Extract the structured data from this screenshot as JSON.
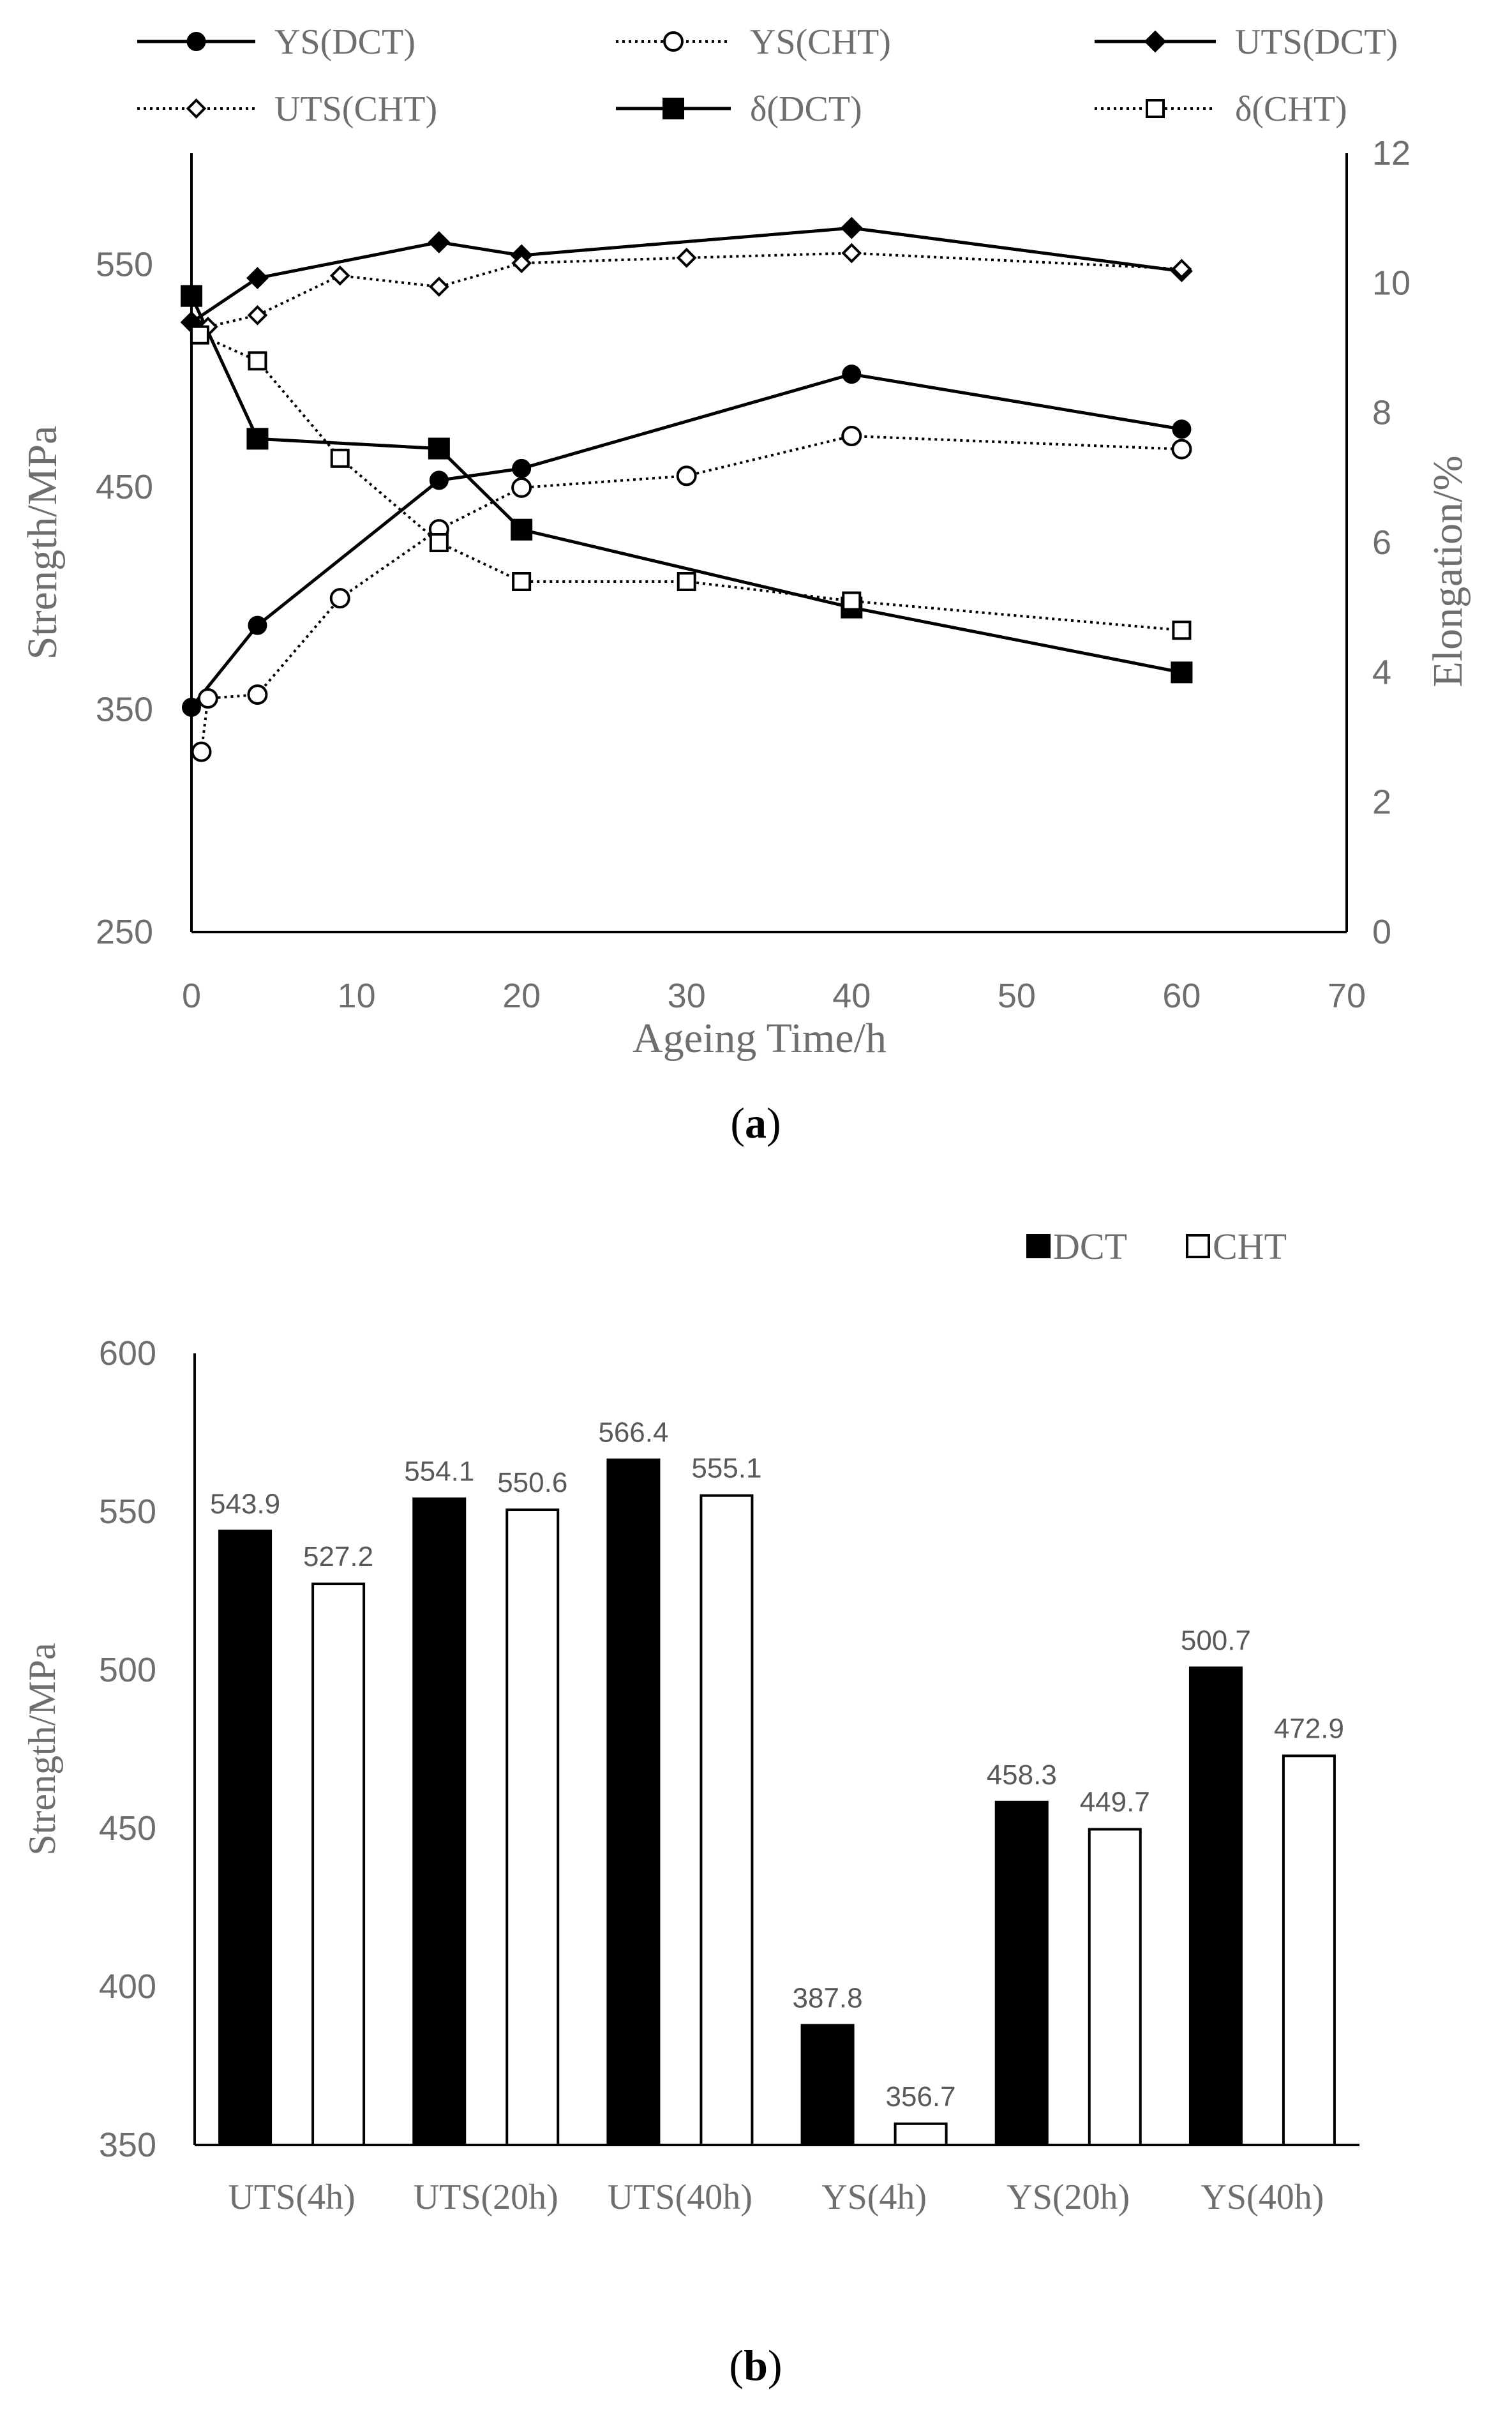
{
  "chart_data": [
    {
      "type": "line",
      "caption": "(a)",
      "xlabel": "Ageing Time/h",
      "ylabel": "Strength/MPa",
      "y2label": "Elongation/%",
      "xlim": [
        0,
        70
      ],
      "ylim": [
        250,
        600
      ],
      "y2lim": [
        0,
        12
      ],
      "x_ticks": [
        "0",
        "10",
        "20",
        "30",
        "40",
        "50",
        "60",
        "70"
      ],
      "y_ticks": [
        "250",
        "350",
        "450",
        "550"
      ],
      "y2_ticks": [
        "0",
        "2",
        "4",
        "6",
        "8",
        "10",
        "12"
      ],
      "grid": false,
      "legend_position": "top",
      "series": [
        {
          "name": "YS(DCT)",
          "axis": "left",
          "line": "solid",
          "marker": "filled-circle",
          "x": [
            0,
            4,
            15,
            20,
            40,
            60
          ],
          "y": [
            351,
            387.8,
            453,
            458.3,
            500.7,
            476
          ]
        },
        {
          "name": "YS(CHT)",
          "axis": "left",
          "line": "dotted",
          "marker": "open-circle",
          "x": [
            0.6,
            1,
            4,
            9,
            15,
            20,
            30,
            40,
            60
          ],
          "y": [
            331,
            355,
            356.7,
            400,
            431,
            449.7,
            455,
            472.9,
            467
          ]
        },
        {
          "name": "UTS(DCT)",
          "axis": "left",
          "line": "solid",
          "marker": "filled-diamond",
          "x": [
            0,
            4,
            15,
            20,
            40,
            60
          ],
          "y": [
            524,
            543.9,
            560,
            554.1,
            566.4,
            547
          ]
        },
        {
          "name": "UTS(CHT)",
          "axis": "left",
          "line": "dotted",
          "marker": "open-diamond",
          "x": [
            1,
            4,
            9,
            15,
            20,
            30,
            40,
            60
          ],
          "y": [
            522,
            527.2,
            545,
            540,
            550.6,
            553,
            555.1,
            548
          ]
        },
        {
          "name": "δ(DCT)",
          "axis": "right",
          "line": "solid",
          "marker": "filled-square",
          "x": [
            0,
            4,
            15,
            20,
            40,
            60
          ],
          "y": [
            9.8,
            7.6,
            7.45,
            6.2,
            5.0,
            4.0
          ]
        },
        {
          "name": "δ(CHT)",
          "axis": "right",
          "line": "dotted",
          "marker": "open-square",
          "x": [
            0.5,
            4,
            9,
            15,
            20,
            30,
            40,
            60
          ],
          "y": [
            9.2,
            8.8,
            7.3,
            6.0,
            5.4,
            5.4,
            5.1,
            4.65
          ]
        }
      ]
    },
    {
      "type": "bar",
      "caption": "(b)",
      "ylabel": "Strength/MPa",
      "xlabel": "",
      "ylim": [
        350,
        600
      ],
      "y_ticks": [
        "350",
        "400",
        "450",
        "500",
        "550",
        "600"
      ],
      "grid": false,
      "legend_position": "top-right",
      "categories": [
        "UTS(4h)",
        "UTS(20h)",
        "UTS(40h)",
        "YS(4h)",
        "YS(20h)",
        "YS(40h)"
      ],
      "series": [
        {
          "name": "DCT",
          "fill": "#000000",
          "values": [
            543.9,
            554.1,
            566.4,
            387.8,
            458.3,
            500.7
          ],
          "labels": [
            "543.9",
            "554.1",
            "566.4",
            "387.8",
            "458.3",
            "500.7"
          ]
        },
        {
          "name": "CHT",
          "fill": "#ffffff",
          "values": [
            527.2,
            550.6,
            555.1,
            356.7,
            449.7,
            472.9
          ],
          "labels": [
            "527.2",
            "550.6",
            "555.1",
            "356.7",
            "449.7",
            "472.9"
          ]
        }
      ]
    }
  ]
}
